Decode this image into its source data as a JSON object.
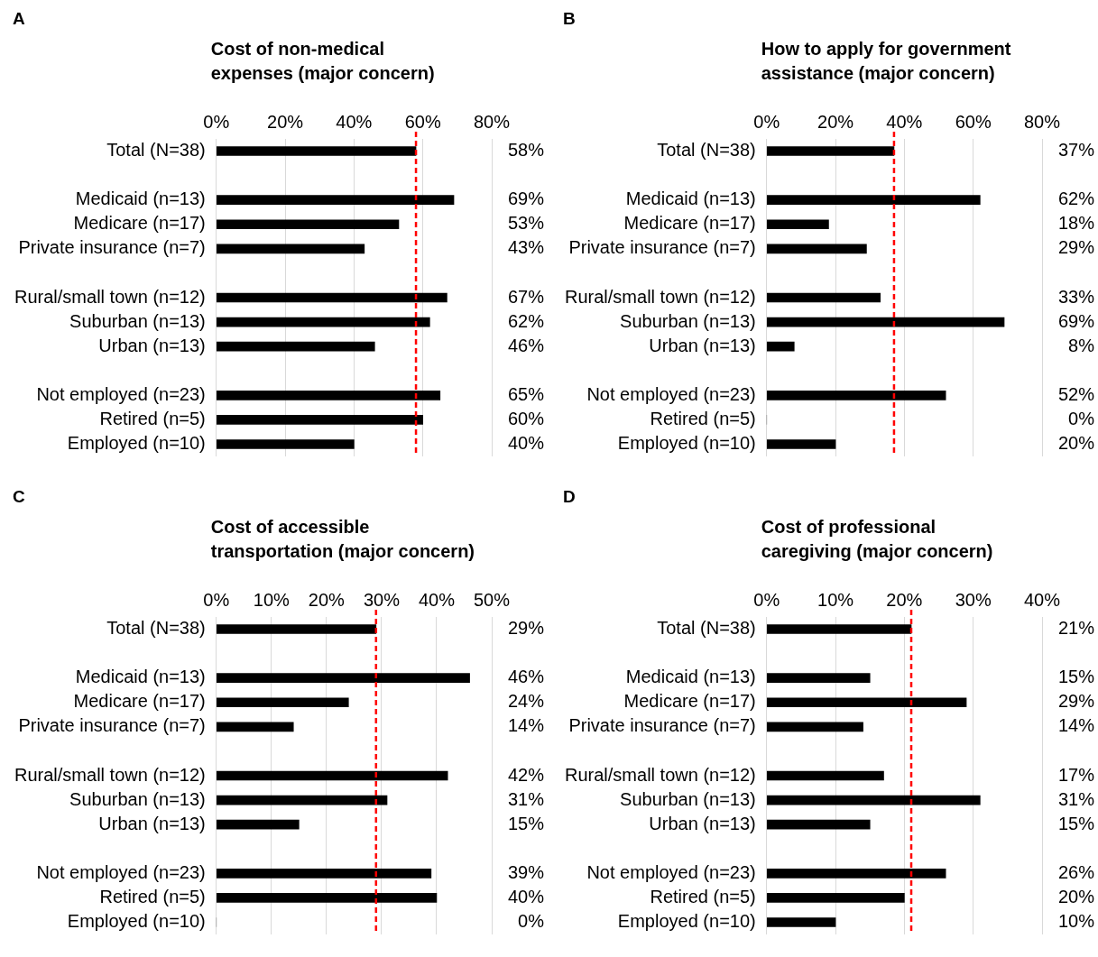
{
  "chart_data": [
    {
      "type": "bar",
      "orientation": "horizontal",
      "title": "Cost of non-medical\nexpenses (major concern)",
      "annotations": [
        "A"
      ],
      "categories": [
        "Total (N=38)",
        null,
        "Medicaid (n=13)",
        "Medicare (n=17)",
        "Private insurance (n=7)",
        null,
        "Rural/small town (n=12)",
        "Suburban (n=13)",
        "Urban (n=13)",
        null,
        "Not employed (n=23)",
        "Retired (n=5)",
        "Employed (n=10)"
      ],
      "values": [
        58,
        null,
        69,
        53,
        43,
        null,
        67,
        62,
        46,
        null,
        65,
        60,
        40
      ],
      "value_labels": [
        "58%",
        null,
        "69%",
        "53%",
        "43%",
        null,
        "67%",
        "62%",
        "46%",
        null,
        "65%",
        "60%",
        "40%"
      ],
      "color": "#000000",
      "xlim": [
        0,
        80
      ],
      "xticks": [
        {
          "value": 0,
          "label": "0%"
        },
        {
          "value": 20,
          "label": "20%"
        },
        {
          "value": 40,
          "label": "40%"
        },
        {
          "value": 60,
          "label": "60%"
        },
        {
          "value": 80,
          "label": "80%"
        }
      ],
      "grid": "x",
      "legend": false,
      "ref_lines": [
        {
          "axis": "x",
          "value": 58,
          "color": "#ff0000",
          "line_style": "dashed"
        }
      ]
    },
    {
      "type": "bar",
      "orientation": "horizontal",
      "title": "How to apply for government\nassistance (major concern)",
      "annotations": [
        "B"
      ],
      "categories": [
        "Total (N=38)",
        null,
        "Medicaid (n=13)",
        "Medicare (n=17)",
        "Private insurance (n=7)",
        null,
        "Rural/small town (n=12)",
        "Suburban (n=13)",
        "Urban (n=13)",
        null,
        "Not employed (n=23)",
        "Retired (n=5)",
        "Employed (n=10)"
      ],
      "values": [
        37,
        null,
        62,
        18,
        29,
        null,
        33,
        69,
        8,
        null,
        52,
        0,
        20
      ],
      "value_labels": [
        "37%",
        null,
        "62%",
        "18%",
        "29%",
        null,
        "33%",
        "69%",
        "8%",
        null,
        "52%",
        "0%",
        "20%"
      ],
      "color": "#000000",
      "xlim": [
        0,
        80
      ],
      "xticks": [
        {
          "value": 0,
          "label": "0%"
        },
        {
          "value": 20,
          "label": "20%"
        },
        {
          "value": 40,
          "label": "40%"
        },
        {
          "value": 60,
          "label": "60%"
        },
        {
          "value": 80,
          "label": "80%"
        }
      ],
      "grid": "x",
      "legend": false,
      "ref_lines": [
        {
          "axis": "x",
          "value": 37,
          "color": "#ff0000",
          "line_style": "dashed"
        }
      ]
    },
    {
      "type": "bar",
      "orientation": "horizontal",
      "title": "Cost of accessible\ntransportation (major concern)",
      "annotations": [
        "C"
      ],
      "categories": [
        "Total (N=38)",
        null,
        "Medicaid (n=13)",
        "Medicare (n=17)",
        "Private insurance (n=7)",
        null,
        "Rural/small town (n=12)",
        "Suburban (n=13)",
        "Urban (n=13)",
        null,
        "Not employed (n=23)",
        "Retired (n=5)",
        "Employed (n=10)"
      ],
      "values": [
        29,
        null,
        46,
        24,
        14,
        null,
        42,
        31,
        15,
        null,
        39,
        40,
        0
      ],
      "value_labels": [
        "29%",
        null,
        "46%",
        "24%",
        "14%",
        null,
        "42%",
        "31%",
        "15%",
        null,
        "39%",
        "40%",
        "0%"
      ],
      "color": "#000000",
      "xlim": [
        0,
        50
      ],
      "xticks": [
        {
          "value": 0,
          "label": "0%"
        },
        {
          "value": 10,
          "label": "10%"
        },
        {
          "value": 20,
          "label": "20%"
        },
        {
          "value": 30,
          "label": "30%"
        },
        {
          "value": 40,
          "label": "40%"
        },
        {
          "value": 50,
          "label": "50%"
        }
      ],
      "grid": "x",
      "legend": false,
      "ref_lines": [
        {
          "axis": "x",
          "value": 29,
          "color": "#ff0000",
          "line_style": "dashed"
        }
      ]
    },
    {
      "type": "bar",
      "orientation": "horizontal",
      "title": "Cost of professional\ncaregiving (major concern)",
      "annotations": [
        "D"
      ],
      "categories": [
        "Total (N=38)",
        null,
        "Medicaid (n=13)",
        "Medicare (n=17)",
        "Private insurance (n=7)",
        null,
        "Rural/small town (n=12)",
        "Suburban (n=13)",
        "Urban (n=13)",
        null,
        "Not employed (n=23)",
        "Retired (n=5)",
        "Employed (n=10)"
      ],
      "values": [
        21,
        null,
        15,
        29,
        14,
        null,
        17,
        31,
        15,
        null,
        26,
        20,
        10
      ],
      "value_labels": [
        "21%",
        null,
        "15%",
        "29%",
        "14%",
        null,
        "17%",
        "31%",
        "15%",
        null,
        "26%",
        "20%",
        "10%"
      ],
      "color": "#000000",
      "xlim": [
        0,
        40
      ],
      "xticks": [
        {
          "value": 0,
          "label": "0%"
        },
        {
          "value": 10,
          "label": "10%"
        },
        {
          "value": 20,
          "label": "20%"
        },
        {
          "value": 30,
          "label": "30%"
        },
        {
          "value": 40,
          "label": "40%"
        }
      ],
      "grid": "x",
      "legend": false,
      "ref_lines": [
        {
          "axis": "x",
          "value": 21,
          "color": "#ff0000",
          "line_style": "dashed"
        }
      ]
    }
  ]
}
